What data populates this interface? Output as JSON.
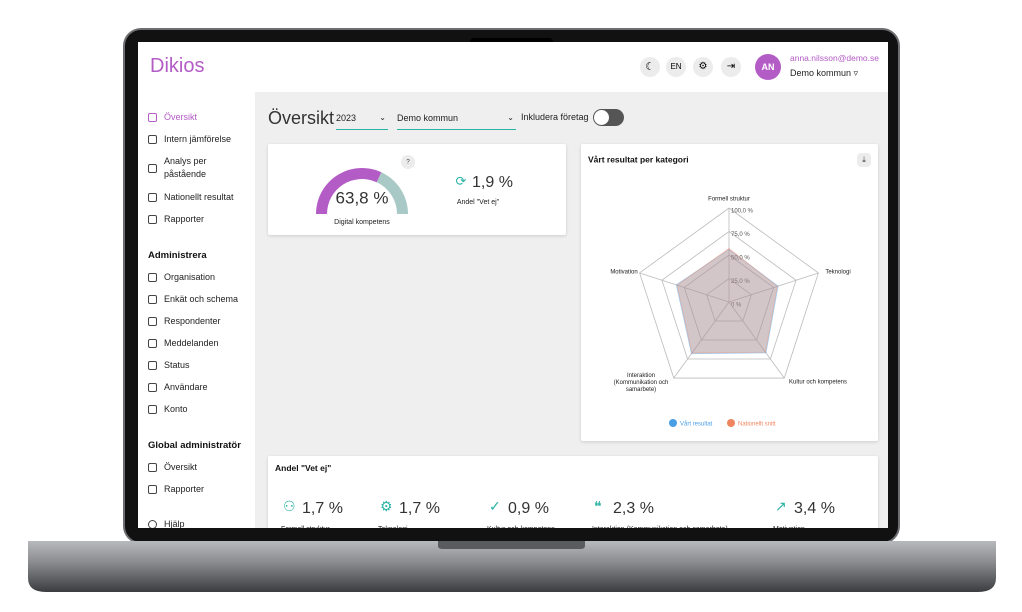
{
  "app": {
    "brand": "Dikios",
    "lang": "EN",
    "user": {
      "initials": "AN",
      "email": "anna.nilsson@demo.se",
      "org": "Demo kommun ▿"
    }
  },
  "sidebar": {
    "main": [
      "Översikt",
      "Intern jämförelse",
      "Analys per påstående",
      "Nationellt resultat",
      "Rapporter"
    ],
    "sections": [
      {
        "title": "Administrera",
        "items": [
          "Organisation",
          "Enkät och schema",
          "Respondenter",
          "Meddelanden",
          "Status",
          "Användare",
          "Konto"
        ]
      },
      {
        "title": "Global administratör",
        "items": [
          "Översikt",
          "Rapporter"
        ]
      }
    ],
    "help": "Hjälp"
  },
  "toolbar": {
    "title": "Översikt",
    "year": "2023",
    "org": "Demo kommun",
    "toggle_label": "Inkludera företag"
  },
  "gauge": {
    "value": 63.8,
    "value_label": "63,8 %",
    "label": "Digital kompetens",
    "help": "?"
  },
  "change": {
    "value_label": "1,9 %",
    "label": "Andel \"Vet ej\""
  },
  "radar": {
    "title": "Vårt resultat per kategori",
    "categories": [
      "Formell struktur",
      "Teknologi",
      "Kultur och kompetens",
      "Interaktion (Kommunikation och samarbete)",
      "Motivation"
    ],
    "rlim": [
      0,
      100
    ],
    "rticks": [
      {
        "value": 0,
        "label": "0 %"
      },
      {
        "value": 25,
        "label": "25,0 %"
      },
      {
        "value": 50,
        "label": "50,0 %"
      },
      {
        "value": 75,
        "label": "75,0 %"
      },
      {
        "value": 100,
        "label": "100,0 %"
      }
    ],
    "series": [
      {
        "name": "Vårt resultat",
        "color": "#4a9ee6",
        "values": [
          56,
          55,
          67,
          68,
          59
        ]
      },
      {
        "name": "Nationellt snitt",
        "color": "#ef8660",
        "values": [
          57,
          54,
          66,
          67,
          58
        ]
      }
    ]
  },
  "unknown": {
    "title": "Andel \"Vet ej\"",
    "items": [
      {
        "value_label": "1,7 %",
        "label": "Formell struktur"
      },
      {
        "value_label": "1,7 %",
        "label": "Teknologi"
      },
      {
        "value_label": "0,9 %",
        "label": "Kultur och kompetens"
      },
      {
        "value_label": "2,3 %",
        "label": "Interaktion (Kommunikation och samarbete)"
      },
      {
        "value_label": "3,4 %",
        "label": "Motivation"
      }
    ]
  }
}
